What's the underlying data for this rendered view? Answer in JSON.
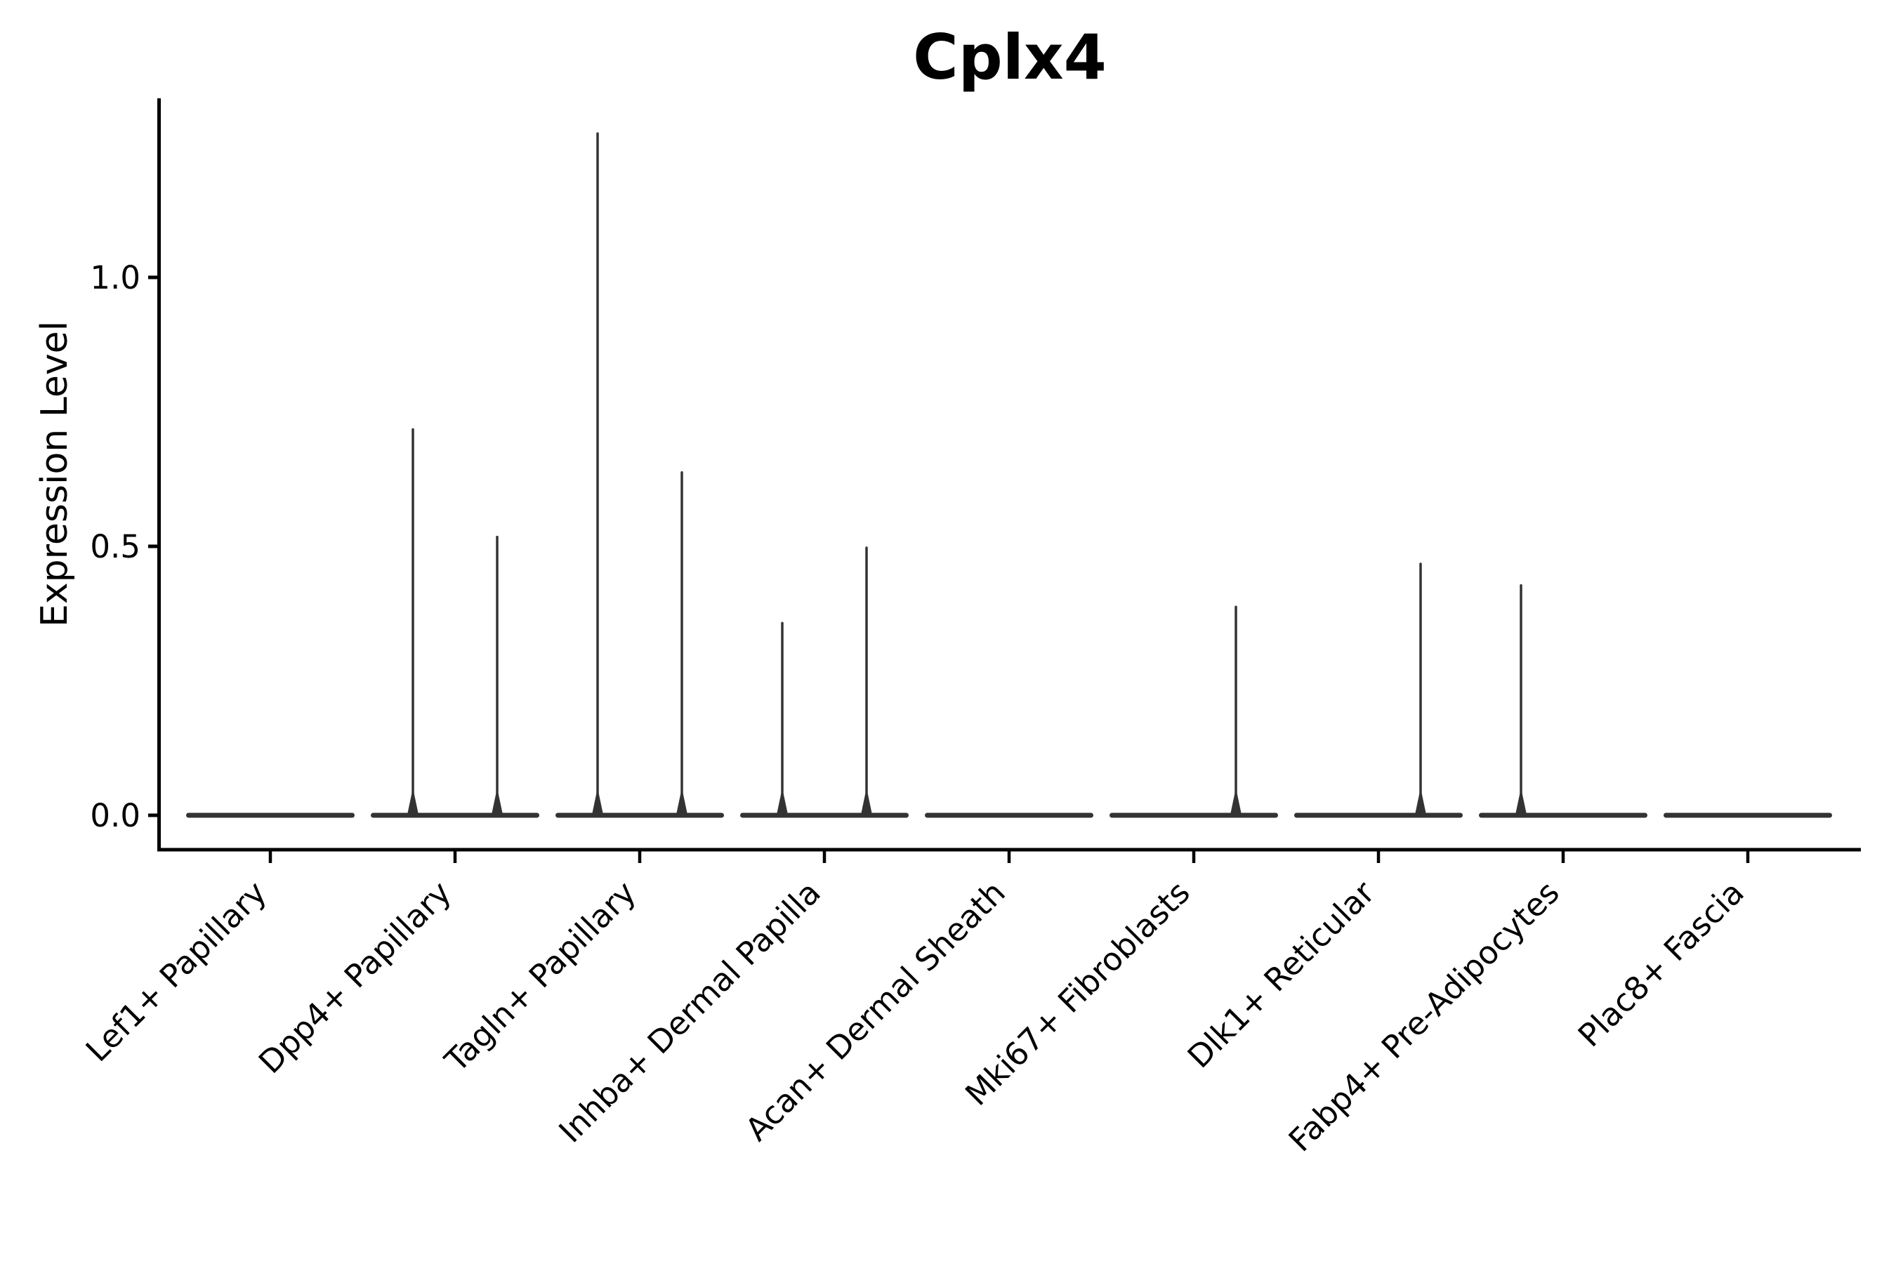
{
  "chart_data": {
    "type": "violin",
    "title": "Cplx4",
    "ylabel": "Expression Level",
    "xlabel": "",
    "yticks": [
      0.0,
      0.5,
      1.0
    ],
    "ytick_labels": [
      "0.0",
      "0.5",
      "1.0"
    ],
    "ylim": [
      -0.064,
      1.333
    ],
    "grid": false,
    "legend": "none",
    "categories": [
      "Lef1+ Papillary",
      "Dpp4+ Papillary",
      "Tagln+ Papillary",
      "Inhba+ Dermal Papilla",
      "Acan+ Dermal Sheath",
      "Mki67+ Fibroblasts",
      "Dlk1+ Reticular",
      "Fabp4+ Pre-Adipocytes",
      "Plac8+ Fascia"
    ],
    "violins": [
      {
        "category": "Lef1+ Papillary",
        "halves": [
          {
            "side": "left",
            "max": 0
          },
          {
            "side": "right",
            "max": 0
          }
        ]
      },
      {
        "category": "Dpp4+ Papillary",
        "halves": [
          {
            "side": "left",
            "max": 0.72
          },
          {
            "side": "right",
            "max": 0.52
          }
        ]
      },
      {
        "category": "Tagln+ Papillary",
        "halves": [
          {
            "side": "left",
            "max": 1.27
          },
          {
            "side": "right",
            "max": 0.64
          }
        ]
      },
      {
        "category": "Inhba+ Dermal Papilla",
        "halves": [
          {
            "side": "left",
            "max": 0.36
          },
          {
            "side": "right",
            "max": 0.5
          }
        ]
      },
      {
        "category": "Acan+ Dermal Sheath",
        "halves": [
          {
            "side": "left",
            "max": 0
          },
          {
            "side": "right",
            "max": 0
          }
        ]
      },
      {
        "category": "Mki67+ Fibroblasts",
        "halves": [
          {
            "side": "left",
            "max": 0
          },
          {
            "side": "right",
            "max": 0.39
          }
        ]
      },
      {
        "category": "Dlk1+ Reticular",
        "halves": [
          {
            "side": "left",
            "max": 0
          },
          {
            "side": "right",
            "max": 0.47
          }
        ]
      },
      {
        "category": "Fabp4+ Pre-Adipocytes",
        "halves": [
          {
            "side": "left",
            "max": 0.43
          },
          {
            "side": "right",
            "max": 0
          }
        ]
      },
      {
        "category": "Plac8+ Fascia",
        "halves": [
          {
            "side": "left",
            "max": 0
          },
          {
            "side": "right",
            "max": 0
          }
        ]
      }
    ],
    "colors": {
      "violin": "#333333",
      "axis": "#000000",
      "text": "#000000",
      "background": "#ffffff"
    }
  }
}
